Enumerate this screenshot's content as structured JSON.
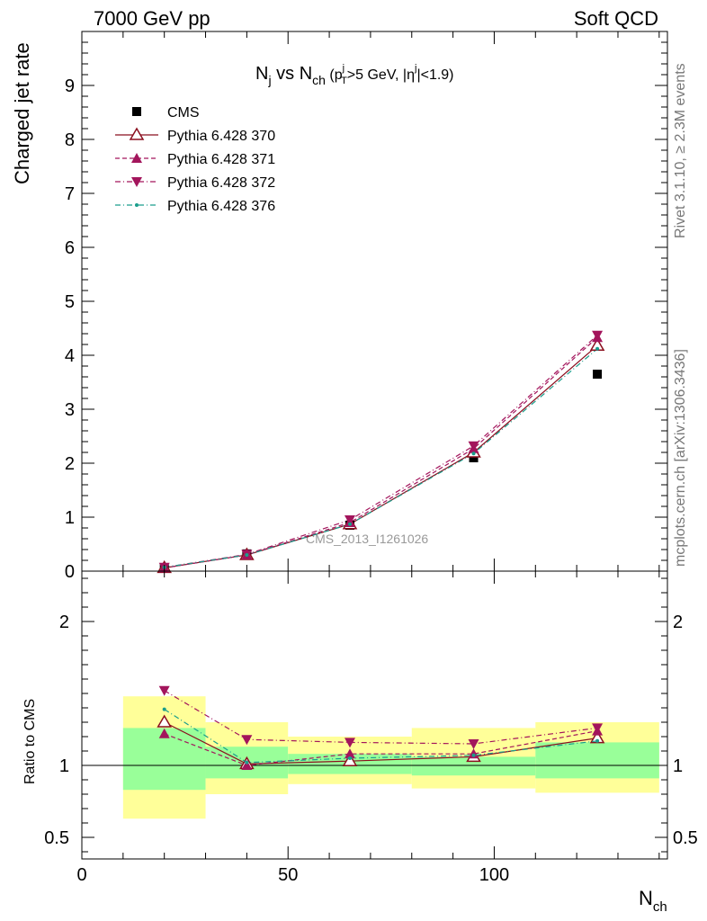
{
  "header": {
    "left": "7000 GeV pp",
    "right": "Soft QCD"
  },
  "side_labels": {
    "rivet": "Rivet 3.1.10, ≥ 2.3M events",
    "source": "mcplots.cern.ch [arXiv:1306.3436]"
  },
  "watermark": "CMS_2013_I1261026",
  "plot_title": {
    "main": "N",
    "main_sub": "j",
    "vs": " vs N",
    "vs_sub": "ch",
    "cut_open": " (p",
    "cut_sup": "j",
    "cut_sub": "T",
    "cut_mid": ">5 GeV, |η",
    "cut_sup2": "j",
    "cut_end": "|<1.9)"
  },
  "chart_data": [
    {
      "type": "scatter",
      "panel": "main",
      "ylabel": "Charged jet rate",
      "ylim": [
        0,
        10
      ],
      "yticks": [
        1,
        2,
        3,
        4,
        5,
        6,
        7,
        8,
        9
      ],
      "xlim": [
        0,
        142
      ],
      "x": [
        20,
        40,
        65,
        95,
        125
      ],
      "series": [
        {
          "name": "CMS",
          "marker": "square",
          "color": "#000000",
          "line": "none",
          "values": [
            0.05,
            0.32,
            0.85,
            2.1,
            3.65
          ]
        },
        {
          "name": "Pythia 6.428 370",
          "marker": "triangle-up-open",
          "color": "#8b0f1e",
          "line": "solid",
          "values": [
            0.06,
            0.3,
            0.87,
            2.2,
            4.18
          ]
        },
        {
          "name": "Pythia 6.428 371",
          "marker": "triangle-up",
          "color": "#a3155c",
          "line": "dashed",
          "values": [
            0.06,
            0.3,
            0.9,
            2.27,
            4.33
          ]
        },
        {
          "name": "Pythia 6.428 372",
          "marker": "triangle-down",
          "color": "#a3155c",
          "line": "dashdot",
          "values": [
            0.07,
            0.31,
            0.95,
            2.32,
            4.37
          ]
        },
        {
          "name": "Pythia 6.428 376",
          "marker": "dot",
          "color": "#1a9e8c",
          "line": "dashdot",
          "values": [
            0.07,
            0.3,
            0.87,
            2.18,
            4.12
          ]
        }
      ]
    },
    {
      "type": "line",
      "panel": "ratio",
      "xlabel": "N",
      "xlabel_sub": "ch",
      "ylabel": "Ratio to CMS",
      "ylim": [
        0.35,
        2.35
      ],
      "yticks": [
        0.5,
        1,
        2
      ],
      "xticks": [
        0,
        50,
        100
      ],
      "x": [
        20,
        40,
        65,
        95,
        125
      ],
      "bands": [
        {
          "xlo": 10,
          "xhi": 30,
          "stat_lo": 0.83,
          "stat_hi": 1.26,
          "tot_lo": 0.63,
          "tot_hi": 1.48
        },
        {
          "xlo": 30,
          "xhi": 50,
          "stat_lo": 0.91,
          "stat_hi": 1.13,
          "tot_lo": 0.8,
          "tot_hi": 1.3
        },
        {
          "xlo": 50,
          "xhi": 80,
          "stat_lo": 0.94,
          "stat_hi": 1.08,
          "tot_lo": 0.87,
          "tot_hi": 1.2
        },
        {
          "xlo": 80,
          "xhi": 110,
          "stat_lo": 0.93,
          "stat_hi": 1.06,
          "tot_lo": 0.84,
          "tot_hi": 1.26
        },
        {
          "xlo": 110,
          "xhi": 140,
          "stat_lo": 0.91,
          "stat_hi": 1.16,
          "tot_lo": 0.81,
          "tot_hi": 1.3
        }
      ],
      "series": [
        {
          "name": "Pythia 6.428 370",
          "values": [
            1.3,
            1.01,
            1.03,
            1.06,
            1.19
          ]
        },
        {
          "name": "Pythia 6.428 371",
          "values": [
            1.22,
            1.0,
            1.08,
            1.08,
            1.24
          ]
        },
        {
          "name": "Pythia 6.428 372",
          "values": [
            1.52,
            1.18,
            1.16,
            1.15,
            1.26
          ]
        },
        {
          "name": "Pythia 6.428 376",
          "values": [
            1.39,
            1.02,
            1.05,
            1.07,
            1.17
          ]
        }
      ]
    }
  ]
}
